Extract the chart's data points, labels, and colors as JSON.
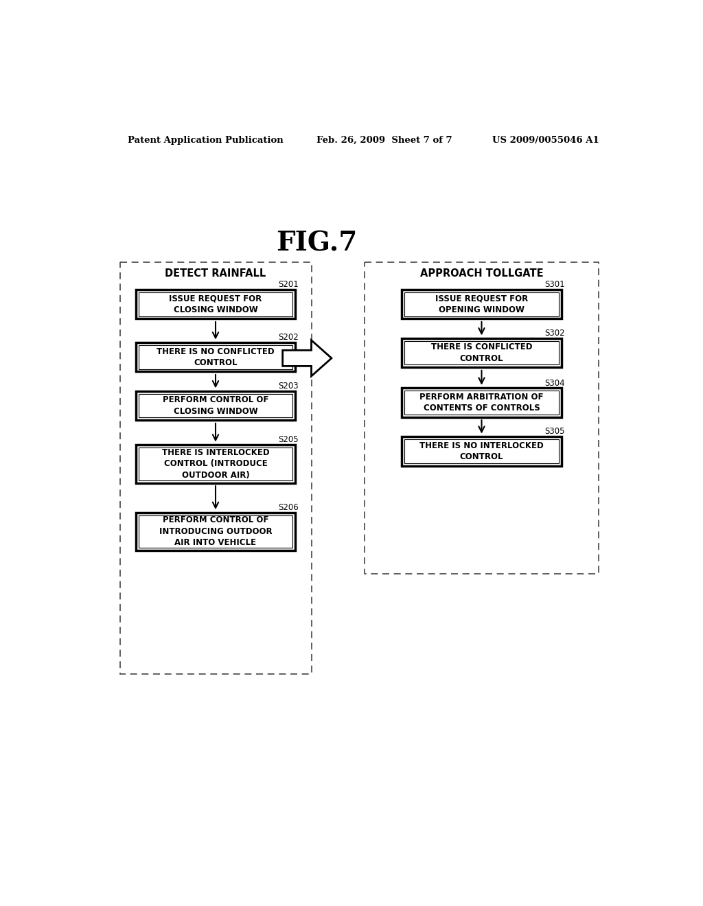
{
  "title": "FIG.7",
  "header_left": "Patent Application Publication",
  "header_center": "Feb. 26, 2009  Sheet 7 of 7",
  "header_right": "US 2009/0055046 A1",
  "left_box_title": "DETECT RAINFALL",
  "right_box_title": "APPROACH TOLLGATE",
  "left_steps": [
    {
      "label": "S201",
      "text": "ISSUE REQUEST FOR\nCLOSING WINDOW"
    },
    {
      "label": "S202",
      "text": "THERE IS NO CONFLICTED\nCONTROL"
    },
    {
      "label": "S203",
      "text": "PERFORM CONTROL OF\nCLOSING WINDOW"
    },
    {
      "label": "S205",
      "text": "THERE IS INTERLOCKED\nCONTROL (INTRODUCE\nOUTDOOR AIR)"
    },
    {
      "label": "S206",
      "text": "PERFORM CONTROL OF\nINTRODUCING OUTDOOR\nAIR INTO VEHICLE"
    }
  ],
  "right_steps": [
    {
      "label": "S301",
      "text": "ISSUE REQUEST FOR\nOPENING WINDOW"
    },
    {
      "label": "S302",
      "text": "THERE IS CONFLICTED\nCONTROL"
    },
    {
      "label": "S304",
      "text": "PERFORM ARBITRATION OF\nCONTENTS OF CONTROLS"
    },
    {
      "label": "S305",
      "text": "THERE IS NO INTERLOCKED\nCONTROL"
    }
  ],
  "bg_color": "#ffffff",
  "text_color": "#000000"
}
